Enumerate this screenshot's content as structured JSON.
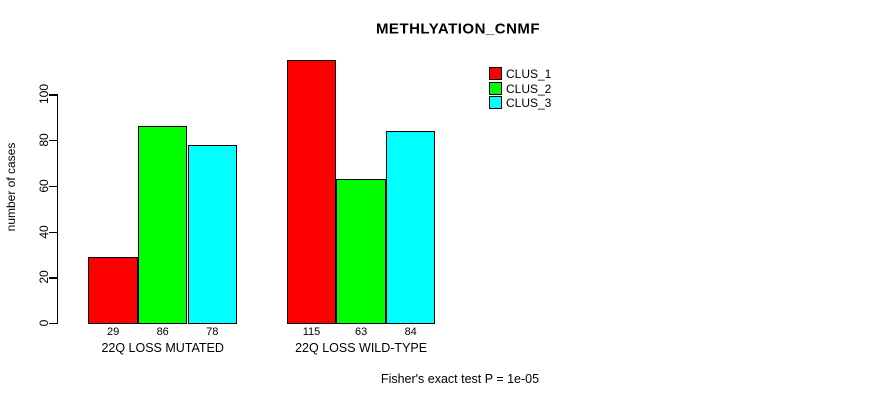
{
  "title": "METHLYATION_CNMF",
  "chart_data": {
    "type": "bar",
    "title": "METHLYATION_CNMF",
    "xlabel": "",
    "ylabel": "number of cases",
    "ylim": [
      0,
      120
    ],
    "yticks": [
      0,
      20,
      40,
      60,
      80,
      100
    ],
    "grid": false,
    "legend_position": "top-right",
    "categories": [
      "22Q LOSS MUTATED",
      "22Q LOSS WILD-TYPE"
    ],
    "series": [
      {
        "name": "CLUS_1",
        "color": "#ff0000",
        "values": [
          29,
          115
        ]
      },
      {
        "name": "CLUS_2",
        "color": "#00ff00",
        "values": [
          86,
          63
        ]
      },
      {
        "name": "CLUS_3",
        "color": "#00ffff",
        "values": [
          78,
          84
        ]
      }
    ],
    "bar_value_labels": [
      [
        29,
        86,
        78
      ],
      [
        115,
        63,
        84
      ]
    ],
    "annotation": "Fisher's exact test P = 1e-05"
  },
  "legend": {
    "items": [
      {
        "label": "CLUS_1",
        "color": "#ff0000"
      },
      {
        "label": "CLUS_2",
        "color": "#00ff00"
      },
      {
        "label": "CLUS_3",
        "color": "#00ffff"
      }
    ]
  },
  "colors": {
    "bar_border": "#000000",
    "axis": "#000000",
    "text": "#000000",
    "background": "#ffffff"
  }
}
